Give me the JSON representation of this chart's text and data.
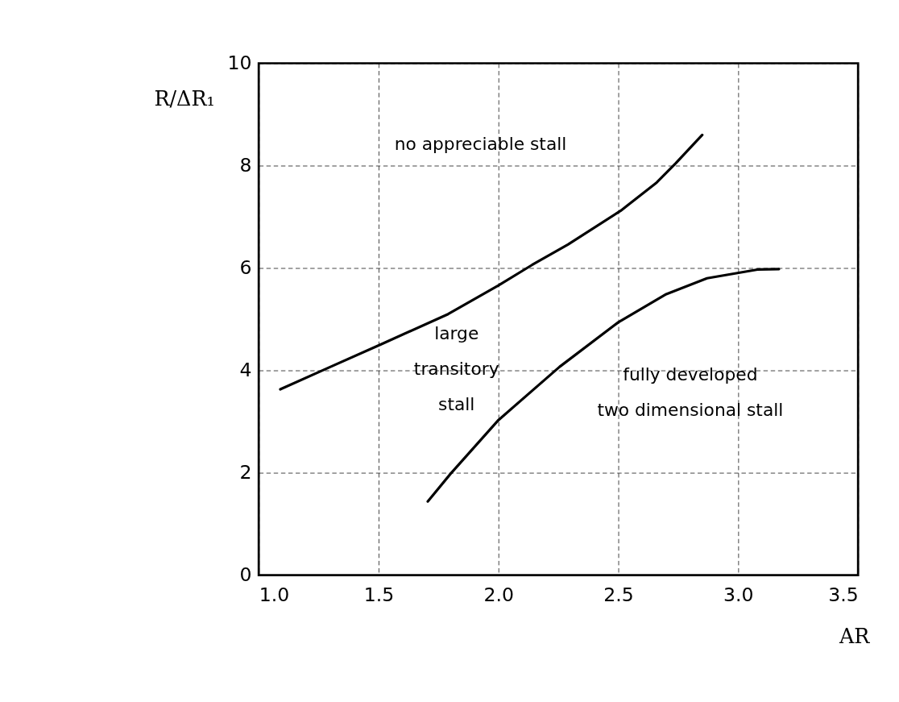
{
  "chart_data": {
    "type": "line",
    "xlabel": "AR",
    "ylabel": "R/ΔR₁",
    "xlim": [
      1.0,
      3.5
    ],
    "ylim": [
      0,
      10
    ],
    "xticks": [
      {
        "value": 1.0,
        "label": "1.0"
      },
      1.5,
      {
        "value": 2.0,
        "label": "2.0"
      },
      2.5,
      {
        "value": 3.0,
        "label": "3.0"
      },
      3.5
    ],
    "yticks": [
      0,
      2,
      4,
      6,
      8,
      10
    ],
    "grid": true,
    "line_style": "solid",
    "marker": "none",
    "series": [
      {
        "color": "#000000",
        "x": [
          1.09,
          1.29,
          1.51,
          1.79,
          2.0,
          2.14,
          2.29,
          2.51,
          2.66,
          2.74,
          2.85
        ],
        "values": [
          3.63,
          4.05,
          4.51,
          5.1,
          5.66,
          6.06,
          6.46,
          7.12,
          7.67,
          8.05,
          8.6
        ]
      },
      {
        "color": "#000000",
        "x": [
          1.705,
          1.8,
          2.0,
          2.255,
          2.5,
          2.7,
          2.87,
          3.08,
          3.17
        ],
        "values": [
          1.44,
          1.98,
          3.03,
          4.07,
          4.94,
          5.49,
          5.8,
          5.97,
          5.98
        ]
      }
    ],
    "annotations": [
      "no appreciable stall",
      "large\ntransitory\nstall",
      "fully developed\ntwo dimensional stall"
    ]
  }
}
